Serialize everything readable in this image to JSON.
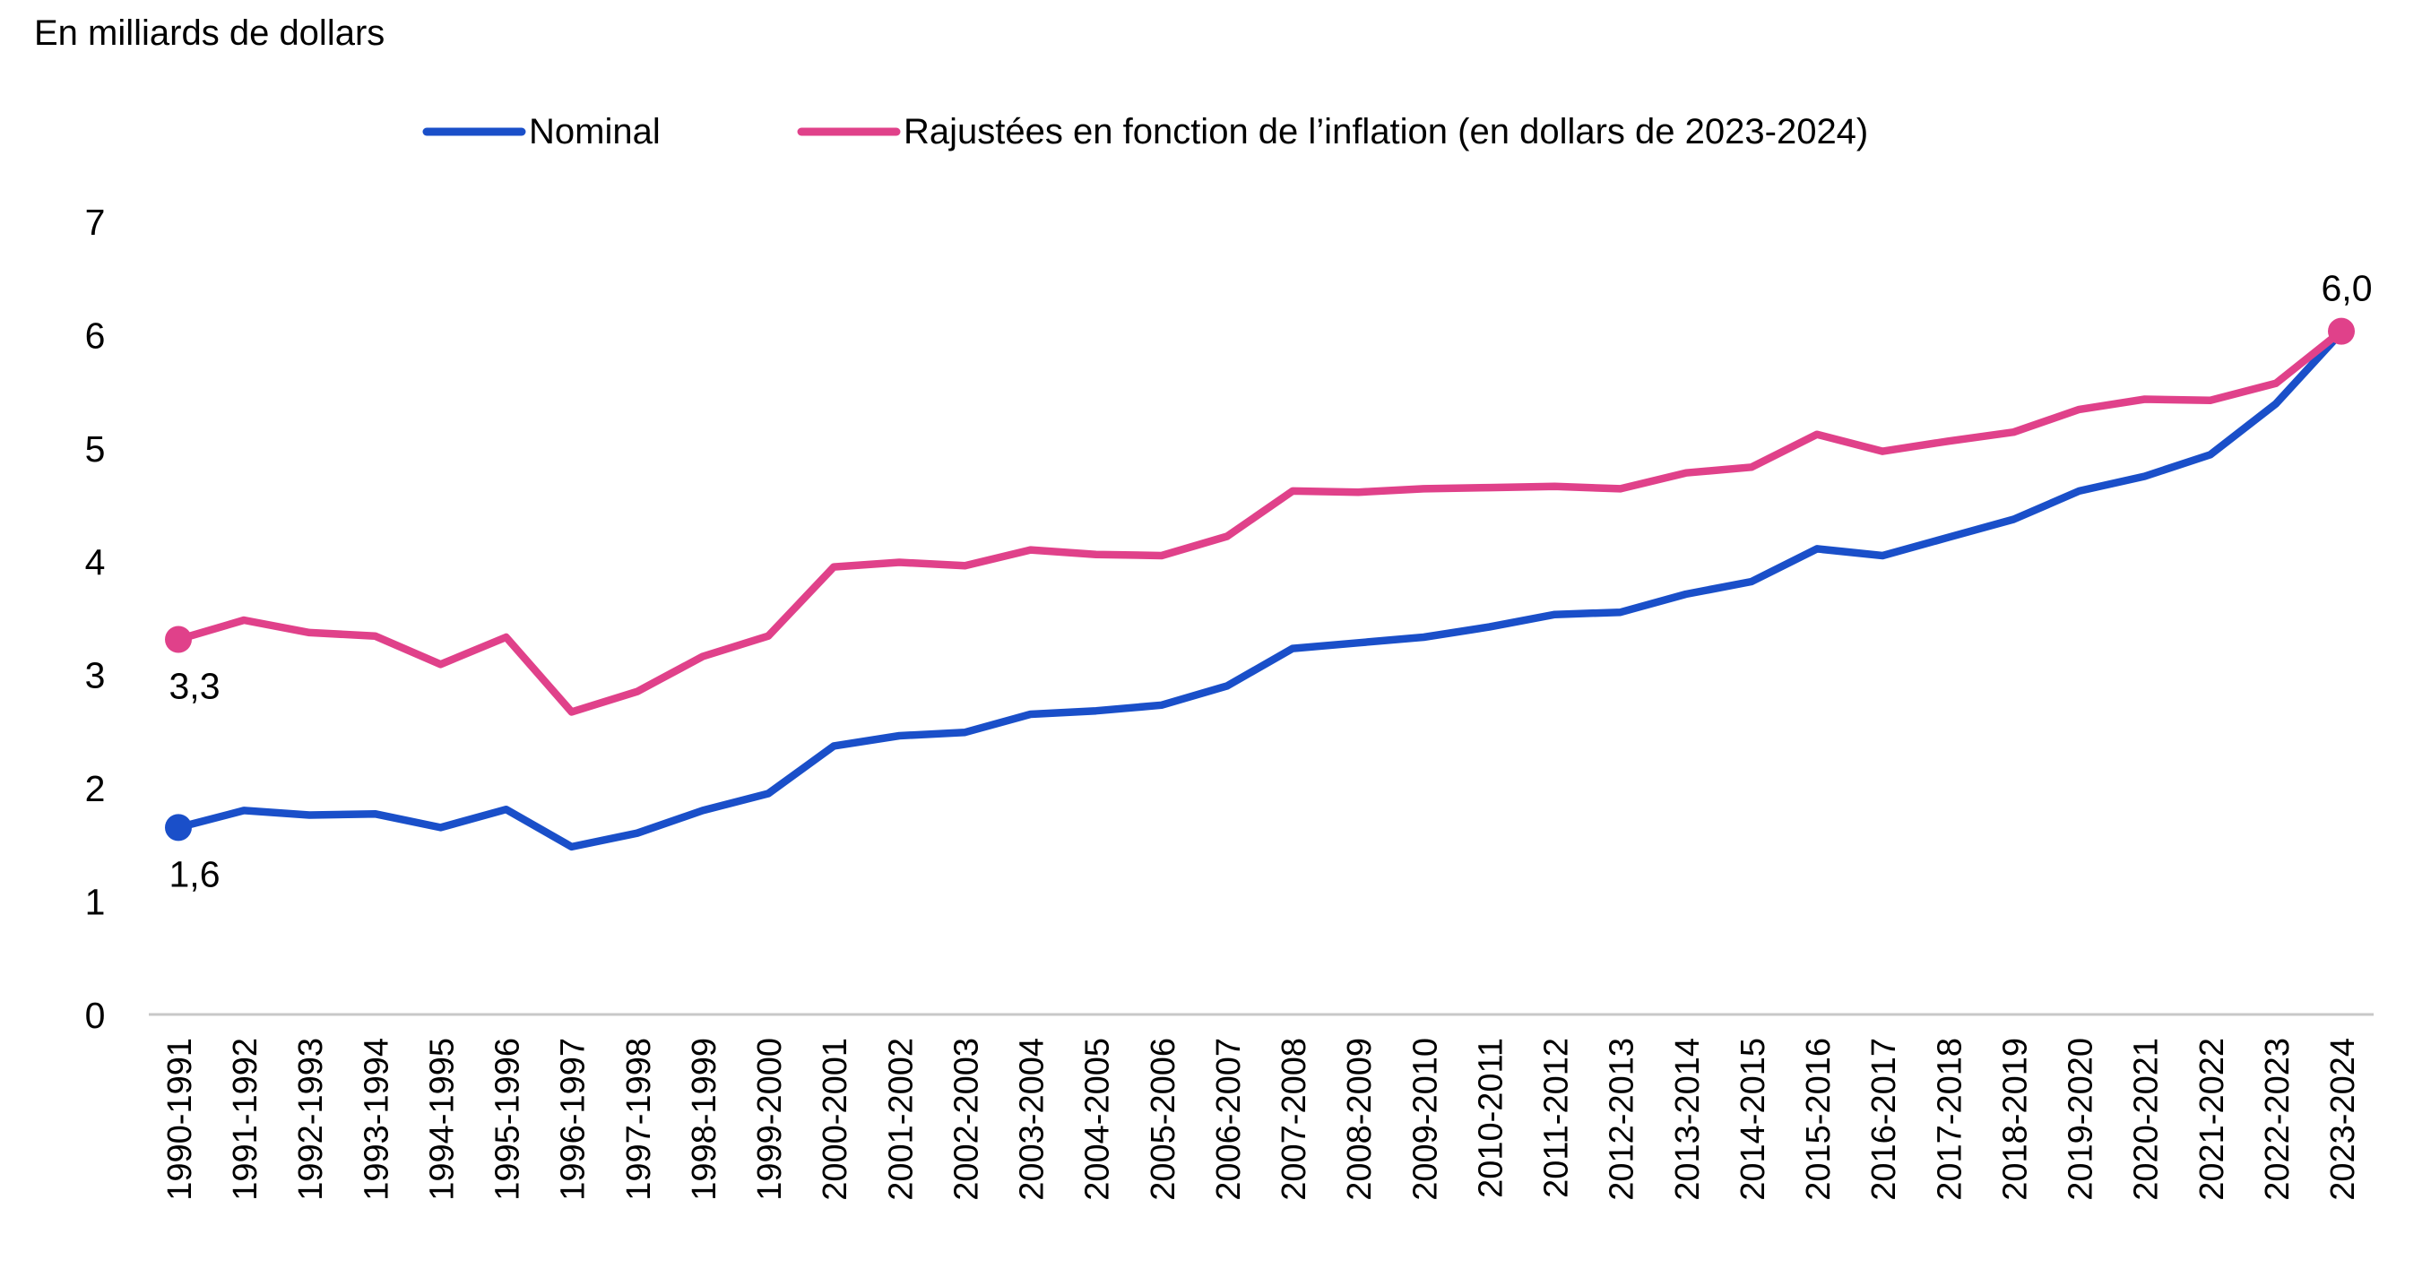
{
  "chart_data": {
    "type": "line",
    "title": "",
    "ylabel": "En milliards de dollars",
    "xlabel": "",
    "ylim": [
      0,
      7
    ],
    "yticks": [
      "0",
      "1",
      "2",
      "3",
      "4",
      "5",
      "6",
      "7"
    ],
    "grid": false,
    "legend_position": "top",
    "categories": [
      "1990-1991",
      "1991-1992",
      "1992-1993",
      "1993-1994",
      "1994-1995",
      "1995-1996",
      "1996-1997",
      "1997-1998",
      "1998-1999",
      "1999-2000",
      "2000-2001",
      "2001-2002",
      "2002-2003",
      "2003-2004",
      "2004-2005",
      "2005-2006",
      "2006-2007",
      "2007-2008",
      "2008-2009",
      "2009-2010",
      "2010-2011",
      "2011-2012",
      "2012-2013",
      "2013-2014",
      "2014-2015",
      "2015-2016",
      "2016-2017",
      "2017-2018",
      "2018-2019",
      "2019-2020",
      "2020-2021",
      "2021-2022",
      "2022-2023",
      "2023-2024"
    ],
    "series": [
      {
        "name": "Nominal",
        "color": "#1a4fc9",
        "values": [
          1.65,
          1.8,
          1.76,
          1.77,
          1.65,
          1.81,
          1.48,
          1.6,
          1.8,
          1.95,
          2.37,
          2.46,
          2.49,
          2.65,
          2.68,
          2.73,
          2.9,
          3.23,
          3.28,
          3.33,
          3.42,
          3.53,
          3.55,
          3.71,
          3.82,
          4.11,
          4.05,
          4.21,
          4.37,
          4.62,
          4.75,
          4.94,
          5.39,
          6.02
        ]
      },
      {
        "name": "Rajustées en fonction de l’inflation (en dollars de 2023-2024)",
        "color": "#e0418a",
        "values": [
          3.31,
          3.48,
          3.37,
          3.34,
          3.09,
          3.33,
          2.67,
          2.85,
          3.16,
          3.34,
          3.95,
          3.99,
          3.96,
          4.1,
          4.06,
          4.05,
          4.22,
          4.62,
          4.61,
          4.64,
          4.65,
          4.66,
          4.64,
          4.78,
          4.83,
          5.12,
          4.97,
          5.06,
          5.14,
          5.34,
          5.43,
          5.42,
          5.57,
          6.03
        ]
      }
    ],
    "annotations": [
      {
        "series": 0,
        "index": 0,
        "text": "1,6",
        "position": "below"
      },
      {
        "series": 1,
        "index": 0,
        "text": "3,3",
        "position": "below"
      },
      {
        "series": 1,
        "index": 33,
        "text": "6,0",
        "position": "above"
      }
    ]
  }
}
